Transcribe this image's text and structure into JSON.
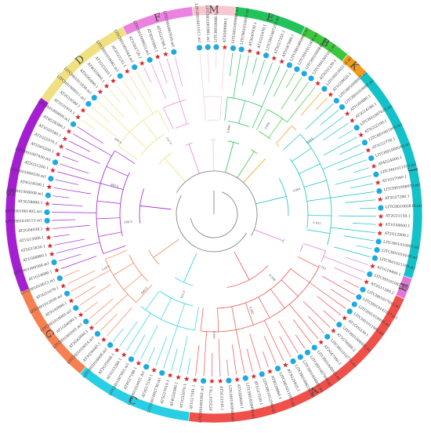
{
  "clades": [
    {
      "name": "M",
      "start": -6,
      "end": 6,
      "color": "#f7c6cf"
    },
    {
      "name": "E",
      "start": 6,
      "end": 26,
      "color": "#22c35a"
    },
    {
      "name": "B",
      "start": 26,
      "end": 40,
      "color": "#3cc83c"
    },
    {
      "name": "K",
      "start": 40,
      "end": 47,
      "color": "#f29b1a"
    },
    {
      "name": "J",
      "start": 47,
      "end": 108,
      "color": "#13c2c9"
    },
    {
      "name": "H",
      "start": 108,
      "end": 114,
      "color": "#e377d8"
    },
    {
      "name": "A",
      "start": 114,
      "end": 187,
      "color": "#f0504a"
    },
    {
      "name": "C",
      "start": 187,
      "end": 220,
      "color": "#28cfe4"
    },
    {
      "name": "G",
      "start": 220,
      "end": 248,
      "color": "#f58052"
    },
    {
      "name": "S",
      "start": 248,
      "end": 304,
      "color": "#a31fd0"
    },
    {
      "name": "D",
      "start": 304,
      "end": 334,
      "color": "#f0e082"
    },
    {
      "name": "F",
      "start": 334,
      "end": 354,
      "color": "#ec82e0"
    }
  ],
  "leaves": [
    "LITCH010011011.m1",
    "LITCH01003961.m1",
    "LITCH010088.1",
    "AT3G69990.1",
    "LITCH01009862.m1",
    "LITCH01010001.m1",
    "AT3G47930.1",
    "AT1G21070.1",
    "LITCH01007250.m1",
    "AT5G27350.1",
    "AT5G47880.1",
    "LITCH01009985.m1",
    "LITCH01011006.m1",
    "LITCH01009841.m1",
    "LITCH01001011.m1",
    "AT5G51230.1",
    "LITCH01005150.m1",
    "AT1G59620.1",
    "LITCH01008003.m1",
    "LITCH01010087.m1",
    "AT1G50880.1",
    "AT3G14180.1",
    "LITCH01007010.m1",
    "AT5G22100.1",
    "LITCH01001000.m1",
    "AT1G12750.1",
    "LITCH01008540.m1",
    "AT4G24000.1",
    "LITCH01011350.m1",
    "AT1G57040.1",
    "LITCH01008033.m1",
    "AT3G27280.1",
    "LITCH01002810.m1",
    "AT2G31150.1",
    "AT1G58800.1",
    "AT2G12900.1",
    "LITCH01010001.m1",
    "LITCH01010109.m1",
    "LITCH01021169.m1",
    "AT1G19490.1",
    "LITCH01010813.m1",
    "AT3G11280.2",
    "LITCH01017015.m1",
    "LITCH010142217.m1",
    "LITCH01010090.m1",
    "LITCH01011902.m1",
    "AT1G05230.1",
    "LITCH01008001.m1",
    "AT1G78080.2",
    "LITCH01010771.m1",
    "AT2G47260.2",
    "LITCH01008015.m1",
    "LITCH01007090.m1",
    "LITCH01004601.m1",
    "LITCH01006510.m1",
    "AT3G25935.1",
    "LITCH01011000.m1",
    "AT4G28960.1",
    "LITCH01012540.m1",
    "AT1G17520.1",
    "LITCH01020090.m1",
    "AT1G69600.1",
    "LITCH01009500.m1",
    "AT5G33330.1",
    "AT2G51770.1",
    "LITCH01001062.m1",
    "AT1G17581.1",
    "AT1G52070.1",
    "AT4G20580.1",
    "AT5G17010.1",
    "LITCH01002730.m1",
    "AT3G17530.1",
    "LITCH01010031.m1",
    "AT4G27100.1",
    "LITCH01007001.m1",
    "AT1G15280.1",
    "AT2G31600.1",
    "LITCH01016008.m1",
    "AT3G56440.1",
    "LITCH01010014.m1",
    "AT2G42690.1",
    "LITCH01002001.m1",
    "AT1G54090.1",
    "LITCH01010003.m1",
    "AT5G45890.1",
    "LITCH01012030.m1",
    "AT3G51670.1",
    "LITCH01010013.m1",
    "AT1G14680.1",
    "LITCH01000566.m1",
    "AT1G68880.1",
    "AT5G15830.1",
    "AT1G13000.1",
    "AT2G04038.1",
    "LITCH01010113.m1",
    "LITCH01001402.m1",
    "AT3G58080.1",
    "LITCH01008008.m1",
    "AT4G18590.1",
    "LITCH01006530.m1",
    "AT2G31200.1",
    "LITCH01007450.m1",
    "AT5G65200.1",
    "AT1G22570.1",
    "AT3G20540.1",
    "AT4G28380.1",
    "LITCH01009090.m1",
    "AT1G31910.1",
    "AT2G10580.1",
    "LITCH01008011.m1",
    "LITCH01011930.m1",
    "AT5G42890.1",
    "AT4G05900.1",
    "AT1G23320.1",
    "LITCH01010082.m1",
    "AT3G22232.1",
    "LITCH01001044.m1",
    "AT1G62720.1",
    "LITCH01009022.m1",
    "AT3G01890.1",
    "AT5G22780.1",
    "LITCH01007010.m1"
  ],
  "bootstrap": [
    "0.999",
    "0.891",
    "0.625",
    "0.806",
    "0.911",
    "0.755",
    "0.548",
    "0.992",
    "0.981",
    "0.714",
    "0.665",
    "0.873",
    "0.902",
    "0.588",
    "0.946",
    "0.777"
  ]
}
